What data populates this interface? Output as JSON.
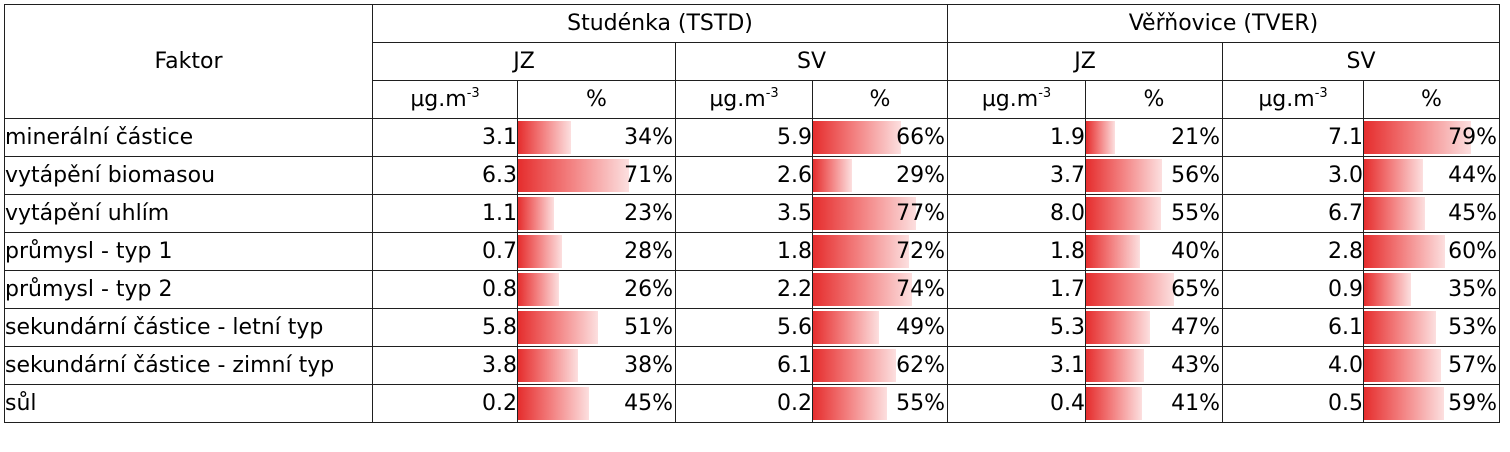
{
  "header": {
    "factor_label": "Faktor",
    "sites": [
      {
        "name": "Studénka (TSTD)"
      },
      {
        "name": "Věřňovice (TVER)"
      }
    ],
    "directions": [
      "JZ",
      "SV",
      "JZ",
      "SV"
    ],
    "unit_base": "µg.m",
    "unit_exp": "-3",
    "pct_label": "%"
  },
  "rows": [
    {
      "factor": "minerální částice",
      "cells": [
        {
          "val": "3.1",
          "pct": "34%",
          "frac": 0.34
        },
        {
          "val": "5.9",
          "pct": "66%",
          "frac": 0.66
        },
        {
          "val": "1.9",
          "pct": "21%",
          "frac": 0.21
        },
        {
          "val": "7.1",
          "pct": "79%",
          "frac": 0.79
        }
      ]
    },
    {
      "factor": "vytápění biomasou",
      "cells": [
        {
          "val": "6.3",
          "pct": "71%",
          "frac": 0.71
        },
        {
          "val": "2.6",
          "pct": "29%",
          "frac": 0.29
        },
        {
          "val": "3.7",
          "pct": "56%",
          "frac": 0.56
        },
        {
          "val": "3.0",
          "pct": "44%",
          "frac": 0.44
        }
      ]
    },
    {
      "factor": "vytápění uhlím",
      "cells": [
        {
          "val": "1.1",
          "pct": "23%",
          "frac": 0.23
        },
        {
          "val": "3.5",
          "pct": "77%",
          "frac": 0.77
        },
        {
          "val": "8.0",
          "pct": "55%",
          "frac": 0.55
        },
        {
          "val": "6.7",
          "pct": "45%",
          "frac": 0.45
        }
      ]
    },
    {
      "factor": "průmysl - typ 1",
      "cells": [
        {
          "val": "0.7",
          "pct": "28%",
          "frac": 0.28
        },
        {
          "val": "1.8",
          "pct": "72%",
          "frac": 0.72
        },
        {
          "val": "1.8",
          "pct": "40%",
          "frac": 0.4
        },
        {
          "val": "2.8",
          "pct": "60%",
          "frac": 0.6
        }
      ]
    },
    {
      "factor": "průmysl - typ 2",
      "cells": [
        {
          "val": "0.8",
          "pct": "26%",
          "frac": 0.26
        },
        {
          "val": "2.2",
          "pct": "74%",
          "frac": 0.74
        },
        {
          "val": "1.7",
          "pct": "65%",
          "frac": 0.65
        },
        {
          "val": "0.9",
          "pct": "35%",
          "frac": 0.35
        }
      ]
    },
    {
      "factor": "sekundární částice - letní typ",
      "cells": [
        {
          "val": "5.8",
          "pct": "51%",
          "frac": 0.51
        },
        {
          "val": "5.6",
          "pct": "49%",
          "frac": 0.49
        },
        {
          "val": "5.3",
          "pct": "47%",
          "frac": 0.47
        },
        {
          "val": "6.1",
          "pct": "53%",
          "frac": 0.53
        }
      ]
    },
    {
      "factor": "sekundární částice - zimní typ",
      "cells": [
        {
          "val": "3.8",
          "pct": "38%",
          "frac": 0.38
        },
        {
          "val": "6.1",
          "pct": "62%",
          "frac": 0.62
        },
        {
          "val": "3.1",
          "pct": "43%",
          "frac": 0.43
        },
        {
          "val": "4.0",
          "pct": "57%",
          "frac": 0.57
        }
      ]
    },
    {
      "factor": "sůl",
      "cells": [
        {
          "val": "0.2",
          "pct": "45%",
          "frac": 0.45
        },
        {
          "val": "0.2",
          "pct": "55%",
          "frac": 0.55
        },
        {
          "val": "0.4",
          "pct": "41%",
          "frac": 0.41
        },
        {
          "val": "0.5",
          "pct": "59%",
          "frac": 0.59
        }
      ]
    }
  ]
}
